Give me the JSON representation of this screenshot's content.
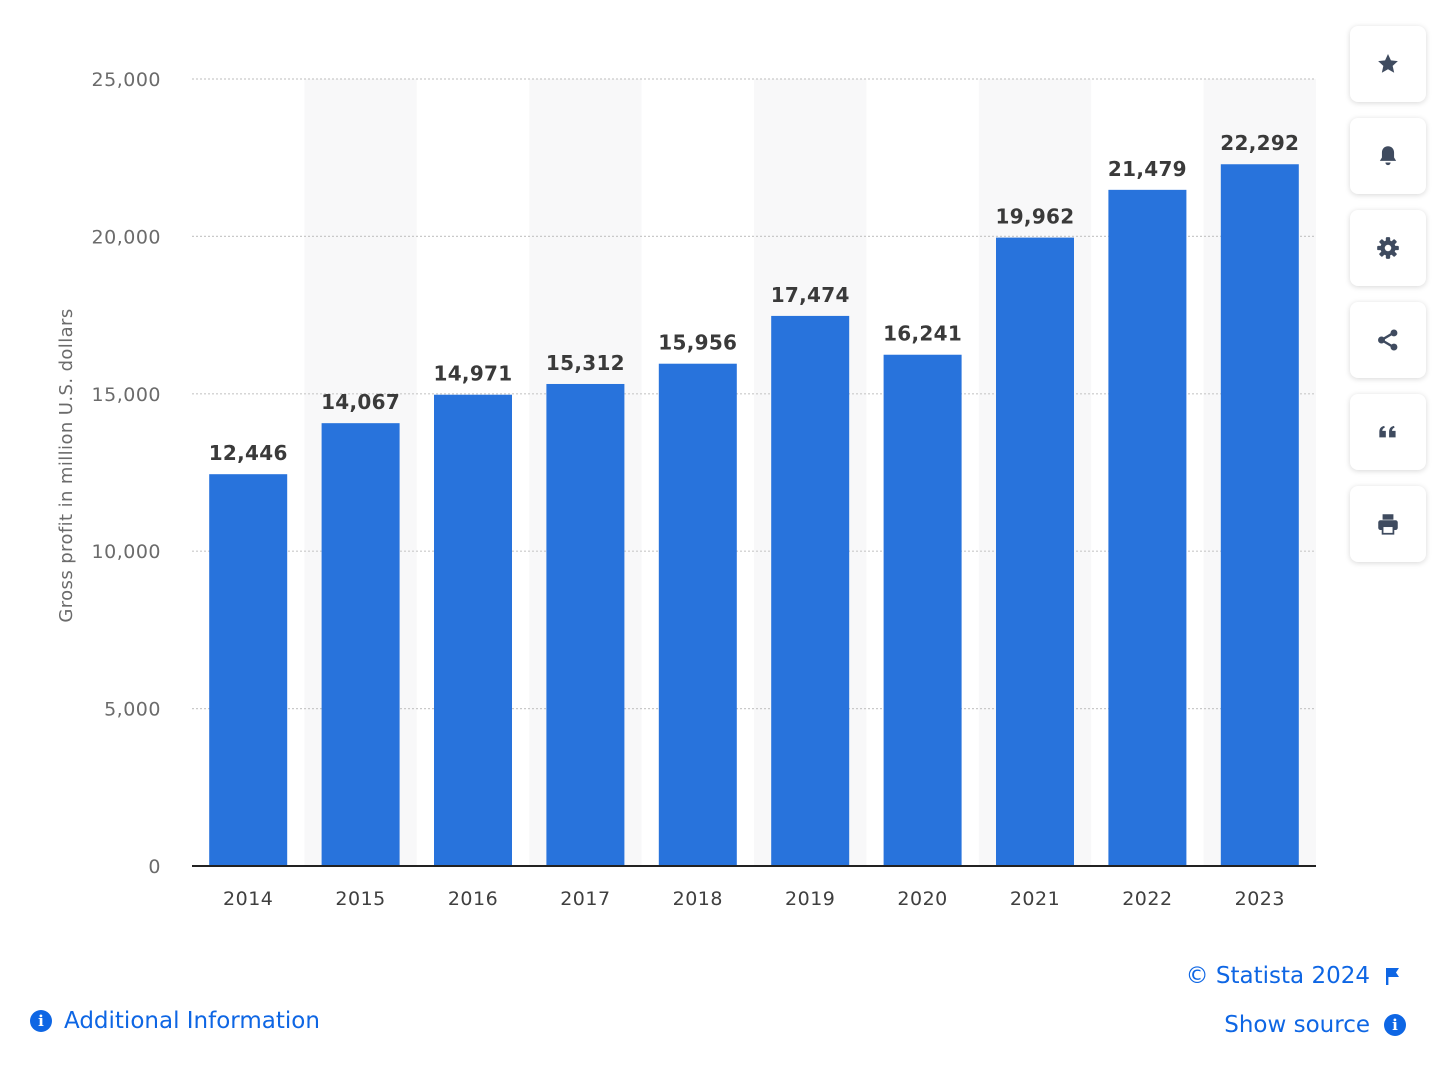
{
  "chart_data": {
    "type": "bar",
    "categories": [
      "2014",
      "2015",
      "2016",
      "2017",
      "2018",
      "2019",
      "2020",
      "2021",
      "2022",
      "2023"
    ],
    "values": [
      12446,
      14067,
      14971,
      15312,
      15956,
      17474,
      16241,
      19962,
      21479,
      22292
    ],
    "value_labels": [
      "12,446",
      "14,067",
      "14,971",
      "15,312",
      "15,956",
      "17,474",
      "16,241",
      "19,962",
      "21,479",
      "22,292"
    ],
    "ylabel": "Gross profit in million U.S. dollars",
    "xlabel": "",
    "ylim": [
      0,
      25000
    ],
    "yticks": [
      0,
      5000,
      10000,
      15000,
      20000,
      25000
    ],
    "ytick_labels": [
      "0",
      "5,000",
      "10,000",
      "15,000",
      "20,000",
      "25,000"
    ],
    "grid": true,
    "colors": {
      "bar": "#2873dc",
      "band": "#f8f8f9",
      "grid": "#c9c9c9",
      "axis": "#222222"
    }
  },
  "toolbar": {
    "buttons": [
      {
        "name": "favorite",
        "icon": "star-icon"
      },
      {
        "name": "notification",
        "icon": "bell-icon"
      },
      {
        "name": "settings",
        "icon": "gear-icon"
      },
      {
        "name": "share",
        "icon": "share-icon"
      },
      {
        "name": "cite",
        "icon": "quote-icon"
      },
      {
        "name": "print",
        "icon": "printer-icon"
      }
    ],
    "icon_color": "#3f4b5f"
  },
  "footer": {
    "copyright": "© Statista 2024",
    "show_source": "Show source",
    "additional_info": "Additional Information",
    "link_color": "#0e66e4"
  }
}
